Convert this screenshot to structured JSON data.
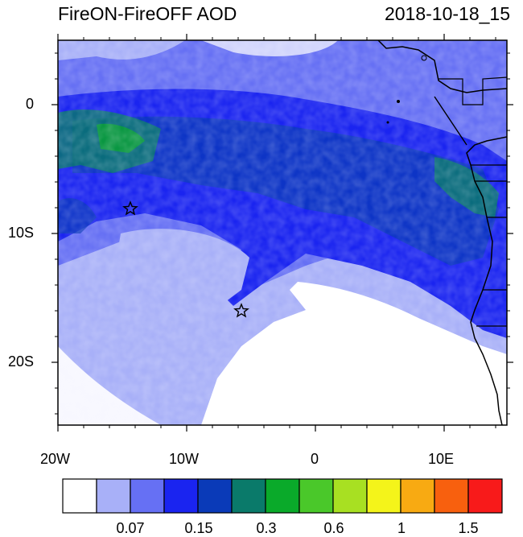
{
  "map": {
    "title_left": "FireON-FireOFF AOD",
    "title_right": "2018-10-18_15",
    "x_labels": [
      "20W",
      "10W",
      "0",
      "10E"
    ],
    "y_labels": [
      "0",
      "10S",
      "20S"
    ],
    "colorbar_labels": [
      "0.07",
      "0.15",
      "0.3",
      "0.6",
      "1",
      "1.5"
    ],
    "colorbar_colors": [
      "#ffffff",
      "#a8b0f8",
      "#6670f4",
      "#1a24f0",
      "#0a3ab8",
      "#0a7a6a",
      "#0aaa2a",
      "#4ac82a",
      "#a8e022",
      "#f4f41a",
      "#f8aa12",
      "#f8600e",
      "#f81a1a"
    ],
    "markers": [
      "star",
      "star"
    ]
  }
}
